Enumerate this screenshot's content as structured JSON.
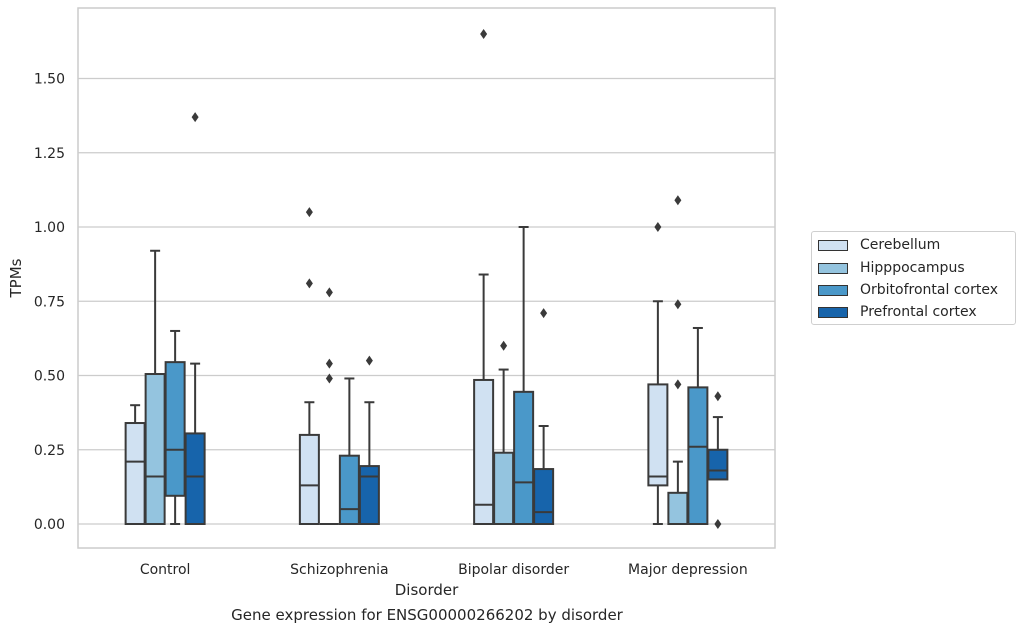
{
  "caption": "Gene expression for ENSG00000266202 by disorder",
  "colors": {
    "Cerebellum": "#d0e1f2",
    "Hipppocampus": "#94c4df",
    "Orbitofrontal cortex": "#4a98c9",
    "Prefrontal cortex": "#1764ab",
    "grid": "#cccccc",
    "frame": "#cccccc",
    "box_edge": "#3a3a3a"
  },
  "chart_data": {
    "type": "box",
    "xlabel": "Disorder",
    "ylabel": "TPMs",
    "ylim": [
      -0.08,
      1.78
    ],
    "yticks": [
      "0.00",
      "0.25",
      "0.50",
      "0.75",
      "1.00",
      "1.25",
      "1.50"
    ],
    "ytick_values": [
      0,
      0.25,
      0.5,
      0.75,
      1.0,
      1.25,
      1.5
    ],
    "grid": true,
    "legend_position": "right-outside",
    "categories": [
      "Control",
      "Schizophrenia",
      "Bipolar disorder",
      "Major depression"
    ],
    "series": [
      {
        "name": "Cerebellum",
        "boxes": [
          {
            "q1": 0.0,
            "median": 0.21,
            "q3": 0.34,
            "whisker_low": 0.0,
            "whisker_high": 0.4,
            "outliers": []
          },
          {
            "q1": 0.0,
            "median": 0.13,
            "q3": 0.3,
            "whisker_low": 0.0,
            "whisker_high": 0.41,
            "outliers": [
              0.81,
              1.05
            ]
          },
          {
            "q1": 0.0,
            "median": 0.065,
            "q3": 0.485,
            "whisker_low": 0.0,
            "whisker_high": 0.84,
            "outliers": [
              1.65
            ]
          },
          {
            "q1": 0.13,
            "median": 0.16,
            "q3": 0.47,
            "whisker_low": 0.0,
            "whisker_high": 0.75,
            "outliers": [
              1.0
            ]
          }
        ]
      },
      {
        "name": "Hipppocampus",
        "boxes": [
          {
            "q1": 0.0,
            "median": 0.16,
            "q3": 0.505,
            "whisker_low": 0.0,
            "whisker_high": 0.92,
            "outliers": []
          },
          {
            "q1": 0.0,
            "median": 0.0,
            "q3": 0.0,
            "whisker_low": 0.0,
            "whisker_high": 0.0,
            "outliers": [
              0.49,
              0.54,
              0.78
            ]
          },
          {
            "q1": 0.0,
            "median": 0.0,
            "q3": 0.24,
            "whisker_low": 0.0,
            "whisker_high": 0.52,
            "outliers": [
              0.6
            ]
          },
          {
            "q1": 0.0,
            "median": 0.0,
            "q3": 0.105,
            "whisker_low": 0.0,
            "whisker_high": 0.21,
            "outliers": [
              0.47,
              0.74,
              1.09
            ]
          }
        ]
      },
      {
        "name": "Orbitofrontal cortex",
        "boxes": [
          {
            "q1": 0.095,
            "median": 0.25,
            "q3": 0.545,
            "whisker_low": 0.0,
            "whisker_high": 0.65,
            "outliers": []
          },
          {
            "q1": 0.0,
            "median": 0.05,
            "q3": 0.23,
            "whisker_low": 0.0,
            "whisker_high": 0.49,
            "outliers": []
          },
          {
            "q1": 0.0,
            "median": 0.14,
            "q3": 0.445,
            "whisker_low": 0.0,
            "whisker_high": 1.0,
            "outliers": []
          },
          {
            "q1": 0.0,
            "median": 0.26,
            "q3": 0.46,
            "whisker_low": 0.0,
            "whisker_high": 0.66,
            "outliers": []
          }
        ]
      },
      {
        "name": "Prefrontal cortex",
        "boxes": [
          {
            "q1": 0.0,
            "median": 0.16,
            "q3": 0.305,
            "whisker_low": 0.0,
            "whisker_high": 0.54,
            "outliers": [
              1.37
            ]
          },
          {
            "q1": 0.0,
            "median": 0.16,
            "q3": 0.195,
            "whisker_low": 0.0,
            "whisker_high": 0.41,
            "outliers": [
              0.55
            ]
          },
          {
            "q1": 0.0,
            "median": 0.04,
            "q3": 0.185,
            "whisker_low": 0.0,
            "whisker_high": 0.33,
            "outliers": [
              0.71
            ]
          },
          {
            "q1": 0.15,
            "median": 0.18,
            "q3": 0.25,
            "whisker_low": 0.15,
            "whisker_high": 0.36,
            "outliers": [
              0.0,
              0.43
            ]
          }
        ]
      }
    ]
  }
}
